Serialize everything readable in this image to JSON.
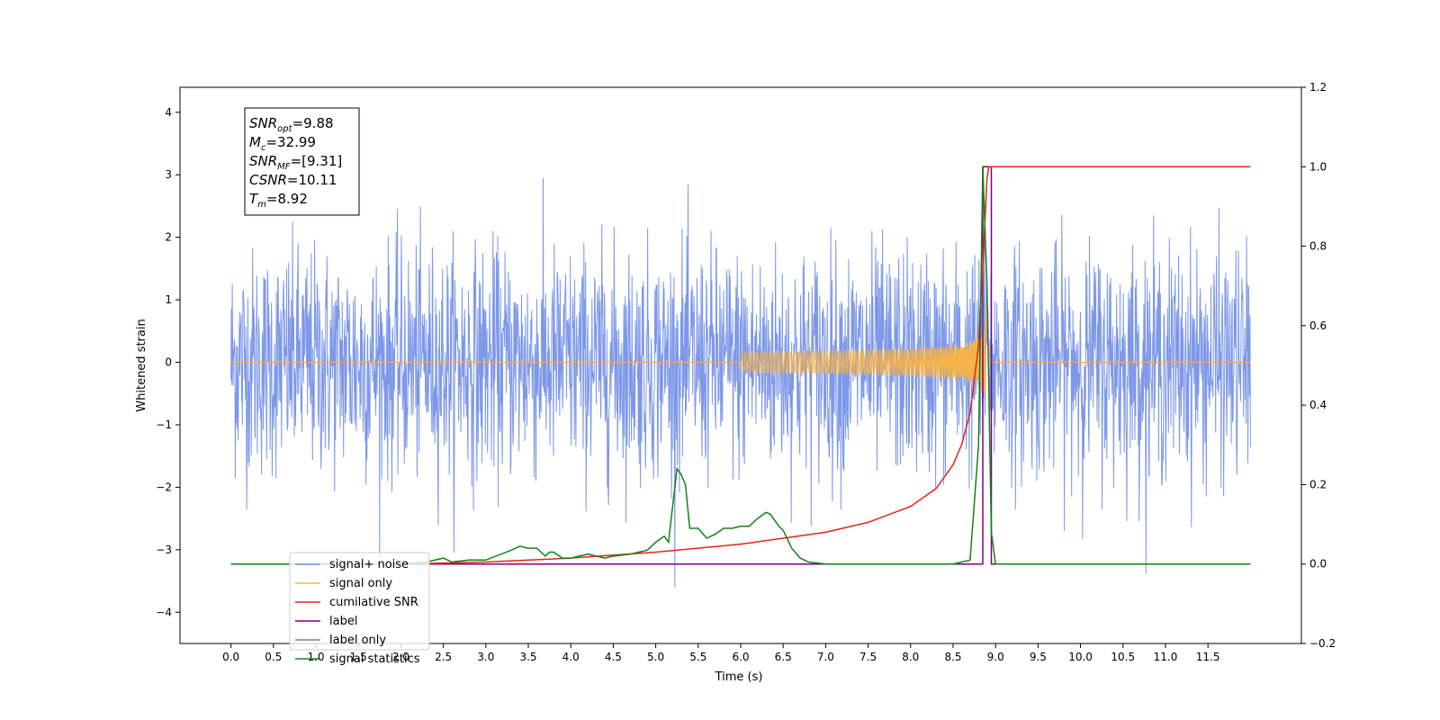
{
  "chart_data": {
    "type": "line",
    "xlabel": "Time (s)",
    "ylabel": "Whitened strain",
    "xlim": [
      -0.6,
      12.6
    ],
    "ylim": [
      -4.5,
      4.4
    ],
    "y2lim": [
      -0.2,
      1.2
    ],
    "xticks": [
      "0.0",
      "0.5",
      "1.0",
      "1.5",
      "2.0",
      "2.5",
      "3.0",
      "3.5",
      "4.0",
      "4.5",
      "5.0",
      "5.5",
      "6.0",
      "6.5",
      "7.0",
      "7.5",
      "8.0",
      "8.5",
      "9.0",
      "9.5",
      "10.0",
      "10.5",
      "11.0",
      "11.5"
    ],
    "yticks": [
      "4",
      "3",
      "2",
      "1",
      "0",
      "−1",
      "−2",
      "−3",
      "−4"
    ],
    "y2ticks": [
      "1.2",
      "1.0",
      "0.8",
      "0.6",
      "0.4",
      "0.2",
      "0.0",
      "−0.2"
    ],
    "grid": false,
    "legend_position": "lower-left",
    "annotation": [
      {
        "base": "SNR",
        "sub": "opt",
        "rest": "=9.88"
      },
      {
        "base": "M",
        "sub": "c",
        "rest": "=32.99"
      },
      {
        "base": "SNR",
        "sub": "MF",
        "rest": "=[9.31]"
      },
      {
        "base": "CSNR",
        "sub": "",
        "rest": "=10.11"
      },
      {
        "base": "T",
        "sub": "m",
        "rest": "=8.92"
      }
    ],
    "series": [
      {
        "name": "signal+ noise",
        "color": "#6f8de6",
        "axis": "left",
        "description": "noisy whitened strain, amplitude about ±1.5 with spikes to about ±3.5, time 0 to 12 s"
      },
      {
        "name": "signal only",
        "color": "#f5b34a",
        "axis": "left",
        "chirp_start": 6.0,
        "merger_time": 8.9,
        "peak_amplitude": 1.2
      },
      {
        "name": "cumilative SNR",
        "color": "#e8231c",
        "axis": "right",
        "x": [
          0.0,
          2.0,
          3.0,
          4.0,
          5.0,
          6.0,
          7.0,
          7.5,
          8.0,
          8.3,
          8.5,
          8.6,
          8.7,
          8.8,
          8.85,
          8.9,
          8.92,
          12.0
        ],
        "y": [
          0.0,
          0.0,
          0.005,
          0.015,
          0.03,
          0.05,
          0.08,
          0.105,
          0.145,
          0.19,
          0.25,
          0.3,
          0.38,
          0.55,
          0.75,
          0.97,
          1.0,
          1.0
        ]
      },
      {
        "name": "label",
        "color": "#800080",
        "axis": "right",
        "x": [
          0.0,
          8.85,
          8.85,
          8.95,
          8.95,
          12.0
        ],
        "y": [
          0.0,
          0.0,
          1.0,
          1.0,
          0.0,
          0.0
        ]
      },
      {
        "name": "label only",
        "color": "#808080",
        "axis": "right",
        "x": [],
        "y": []
      },
      {
        "name": "signal statistics",
        "color": "#15801a",
        "axis": "right",
        "x": [
          0.0,
          2.0,
          2.3,
          2.5,
          2.6,
          2.8,
          3.0,
          3.3,
          3.4,
          3.5,
          3.6,
          3.7,
          3.75,
          3.8,
          3.9,
          4.0,
          4.1,
          4.2,
          4.4,
          4.5,
          4.7,
          4.8,
          4.9,
          5.0,
          5.1,
          5.15,
          5.25,
          5.3,
          5.35,
          5.4,
          5.5,
          5.6,
          5.7,
          5.8,
          5.9,
          6.0,
          6.1,
          6.2,
          6.3,
          6.35,
          6.45,
          6.5,
          6.6,
          6.7,
          6.8,
          7.0,
          7.2,
          8.5,
          8.7,
          8.8,
          8.85,
          8.9,
          8.95,
          9.0,
          12.0
        ],
        "y": [
          0.0,
          0.0,
          0.005,
          0.015,
          0.005,
          0.01,
          0.01,
          0.035,
          0.045,
          0.04,
          0.04,
          0.02,
          0.03,
          0.03,
          0.015,
          0.015,
          0.02,
          0.025,
          0.015,
          0.02,
          0.025,
          0.03,
          0.035,
          0.055,
          0.07,
          0.055,
          0.24,
          0.225,
          0.2,
          0.09,
          0.09,
          0.065,
          0.075,
          0.09,
          0.09,
          0.095,
          0.095,
          0.115,
          0.13,
          0.125,
          0.095,
          0.085,
          0.04,
          0.015,
          0.005,
          0.0,
          0.0,
          0.0,
          0.01,
          0.3,
          1.0,
          0.7,
          0.08,
          0.0,
          0.0
        ]
      }
    ]
  }
}
